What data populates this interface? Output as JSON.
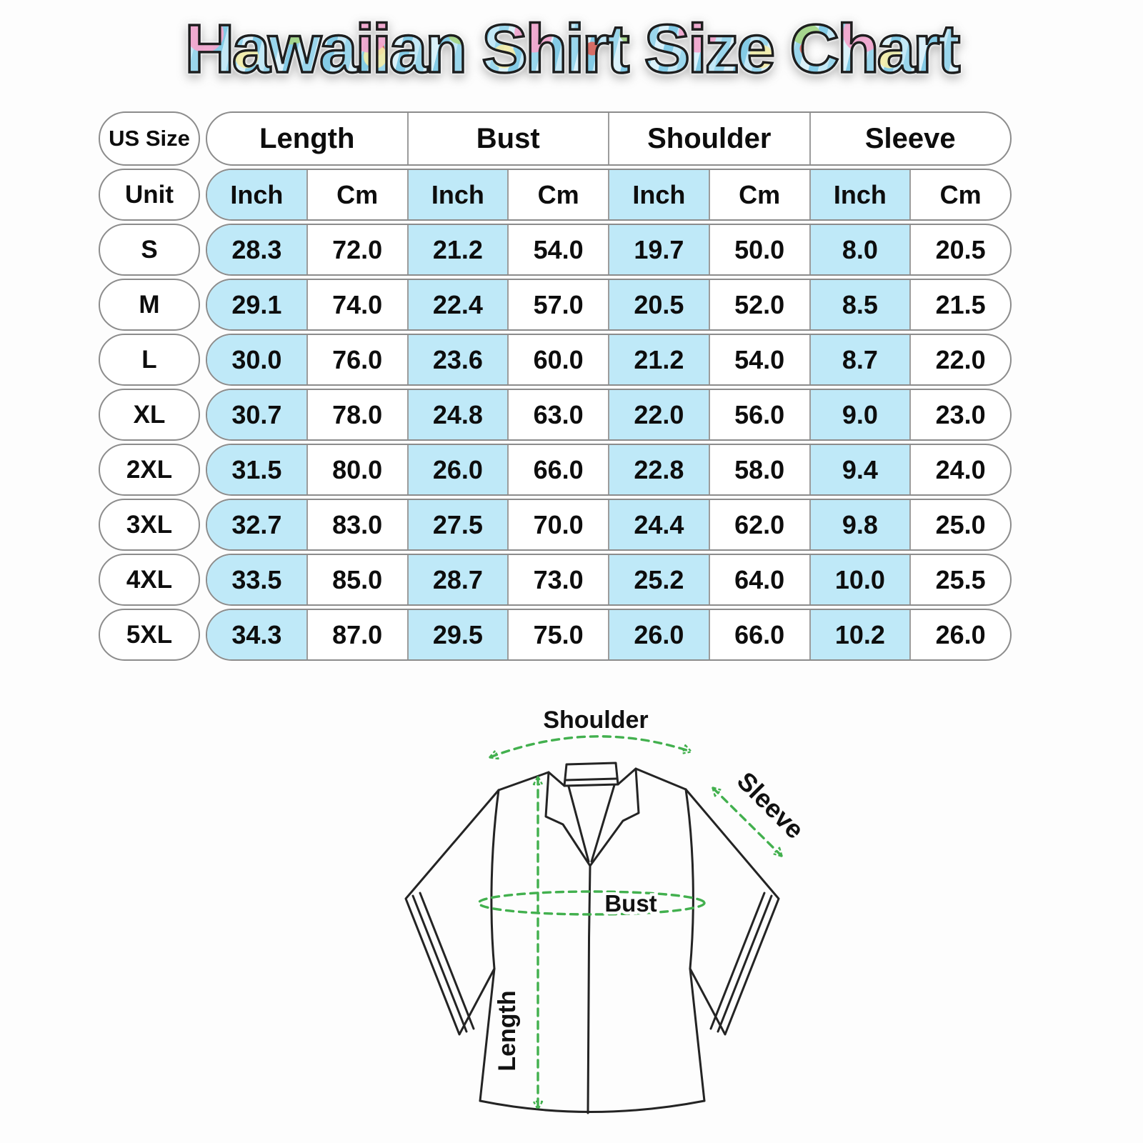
{
  "colors": {
    "highlight_blue": "#bfe9f8",
    "annotation_green": "#42b04e",
    "shirt_outline": "#242424",
    "table_border_gray": "#8c8c8c",
    "title_palette": [
      "#84cbe6",
      "#c3e8f6",
      "#f2a6cd",
      "#8bc470",
      "#f4eca6",
      "#e45d4f"
    ]
  },
  "chart_data": {
    "type": "table",
    "title": "Hawaiian Shirt Size Chart",
    "corner_label": "US Size",
    "unit_label": "Unit",
    "column_groups": [
      "Length",
      "Bust",
      "Shoulder",
      "Sleeve"
    ],
    "unit_headers": [
      "Inch",
      "Cm",
      "Inch",
      "Cm",
      "Inch",
      "Cm",
      "Inch",
      "Cm"
    ],
    "rows": [
      {
        "size": "S",
        "values": [
          "28.3",
          "72.0",
          "21.2",
          "54.0",
          "19.7",
          "50.0",
          "8.0",
          "20.5"
        ]
      },
      {
        "size": "M",
        "values": [
          "29.1",
          "74.0",
          "22.4",
          "57.0",
          "20.5",
          "52.0",
          "8.5",
          "21.5"
        ]
      },
      {
        "size": "L",
        "values": [
          "30.0",
          "76.0",
          "23.6",
          "60.0",
          "21.2",
          "54.0",
          "8.7",
          "22.0"
        ]
      },
      {
        "size": "XL",
        "values": [
          "30.7",
          "78.0",
          "24.8",
          "63.0",
          "22.0",
          "56.0",
          "9.0",
          "23.0"
        ]
      },
      {
        "size": "2XL",
        "values": [
          "31.5",
          "80.0",
          "26.0",
          "66.0",
          "22.8",
          "58.0",
          "9.4",
          "24.0"
        ]
      },
      {
        "size": "3XL",
        "values": [
          "32.7",
          "83.0",
          "27.5",
          "70.0",
          "24.4",
          "62.0",
          "9.8",
          "25.0"
        ]
      },
      {
        "size": "4XL",
        "values": [
          "33.5",
          "85.0",
          "28.7",
          "73.0",
          "25.2",
          "64.0",
          "10.0",
          "25.5"
        ]
      },
      {
        "size": "5XL",
        "values": [
          "34.3",
          "87.0",
          "29.5",
          "75.0",
          "26.0",
          "66.0",
          "10.2",
          "26.0"
        ]
      }
    ]
  },
  "diagram": {
    "labels": {
      "shoulder": "Shoulder",
      "sleeve": "Sleeve",
      "bust": "Bust",
      "length": "Length"
    }
  }
}
